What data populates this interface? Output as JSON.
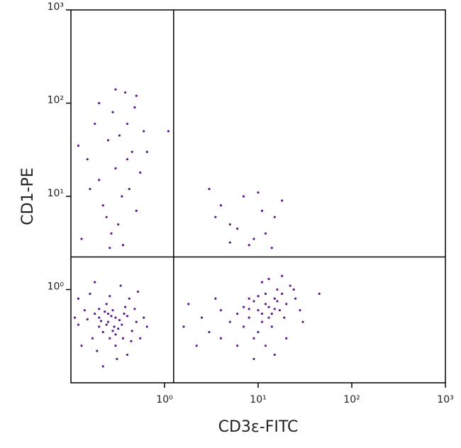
{
  "chart_data": {
    "type": "scatter",
    "x_label": "CD3ε-FITC",
    "y_label": "CD1-PE",
    "log_x": true,
    "log_y": true,
    "xlim": [
      0.1,
      1000
    ],
    "ylim": [
      0.1,
      1000
    ],
    "xticks": [
      {
        "value": 1,
        "label": "10⁰"
      },
      {
        "value": 10,
        "label": "10¹"
      },
      {
        "value": 100,
        "label": "10²"
      },
      {
        "value": 1000,
        "label": "10³"
      }
    ],
    "yticks": [
      {
        "value": 1,
        "label": "10⁰"
      },
      {
        "value": 10,
        "label": "10¹"
      },
      {
        "value": 100,
        "label": "10²"
      },
      {
        "value": 1000,
        "label": "10³"
      }
    ],
    "quadrant_x": 1.25,
    "quadrant_y": 2.24,
    "color": "#5b1a8c",
    "x": [
      0.25,
      0.3,
      0.2,
      0.28,
      0.35,
      0.18,
      0.22,
      0.32,
      0.15,
      0.4,
      0.26,
      0.24,
      0.12,
      0.45,
      0.3,
      0.2,
      0.38,
      0.17,
      0.27,
      0.33,
      0.21,
      0.29,
      0.23,
      0.5,
      0.14,
      0.11,
      0.36,
      0.19,
      0.26,
      0.42,
      0.6,
      0.55,
      0.13,
      0.31,
      0.22,
      0.4,
      0.16,
      0.34,
      0.48,
      0.25,
      0.2,
      0.3,
      0.37,
      0.24,
      0.28,
      0.65,
      0.12,
      0.52,
      0.18,
      0.44,
      10,
      12,
      8,
      15,
      11,
      9,
      14,
      18,
      7,
      13,
      16,
      20,
      6,
      10,
      12,
      17,
      5,
      9,
      22,
      11,
      25,
      8,
      4,
      14,
      19,
      13,
      7,
      10,
      16,
      3,
      2.5,
      28,
      6,
      12,
      15,
      9,
      20,
      4,
      18,
      24,
      11,
      13,
      8,
      15,
      30,
      45,
      1.6,
      1.8,
      2.2,
      3.5,
      0.3,
      0.25,
      0.4,
      0.35,
      0.2,
      0.45,
      0.28,
      0.5,
      0.38,
      0.15,
      0.6,
      0.32,
      0.22,
      0.42,
      0.18,
      0.55,
      0.27,
      0.36,
      0.12,
      0.48,
      0.3,
      0.2,
      0.65,
      0.24,
      0.4,
      0.33,
      0.16,
      0.5,
      0.13,
      0.26,
      3,
      4,
      5,
      7,
      10,
      12,
      8,
      15,
      6,
      9,
      11,
      14,
      18,
      5,
      3.5,
      1.1
    ],
    "values": [
      0.45,
      0.5,
      0.4,
      0.6,
      0.42,
      0.55,
      0.35,
      0.38,
      0.48,
      0.52,
      0.3,
      0.7,
      0.42,
      0.36,
      0.25,
      0.62,
      0.65,
      0.3,
      0.52,
      0.47,
      0.46,
      0.4,
      0.58,
      0.45,
      0.6,
      0.5,
      0.3,
      0.22,
      0.85,
      0.8,
      0.5,
      0.3,
      0.25,
      0.18,
      0.15,
      0.2,
      0.9,
      1.1,
      0.62,
      0.55,
      0.5,
      0.33,
      0.55,
      0.42,
      0.36,
      0.4,
      0.8,
      0.95,
      1.2,
      0.28,
      0.6,
      0.7,
      0.5,
      0.8,
      0.45,
      0.75,
      0.55,
      0.9,
      0.4,
      0.65,
      1.0,
      0.7,
      0.55,
      0.35,
      0.9,
      0.6,
      0.45,
      0.3,
      1.1,
      1.2,
      0.8,
      0.8,
      0.6,
      0.4,
      0.5,
      1.3,
      0.65,
      0.85,
      0.75,
      0.35,
      0.5,
      0.6,
      0.25,
      0.25,
      0.2,
      0.18,
      0.3,
      0.3,
      1.4,
      1.0,
      0.55,
      0.5,
      0.62,
      0.62,
      0.45,
      0.9,
      0.4,
      0.7,
      0.25,
      0.8,
      20,
      40,
      60,
      10,
      15,
      30,
      80,
      120,
      130,
      25,
      50,
      5,
      8,
      12,
      60,
      18,
      4,
      3,
      35,
      90,
      140,
      100,
      30,
      6,
      25,
      45,
      12,
      7,
      3.5,
      2.8,
      12,
      8,
      5,
      10,
      11,
      4,
      3,
      6,
      4.5,
      3.5,
      7,
      2.8,
      9,
      3.2,
      6,
      50
    ]
  }
}
